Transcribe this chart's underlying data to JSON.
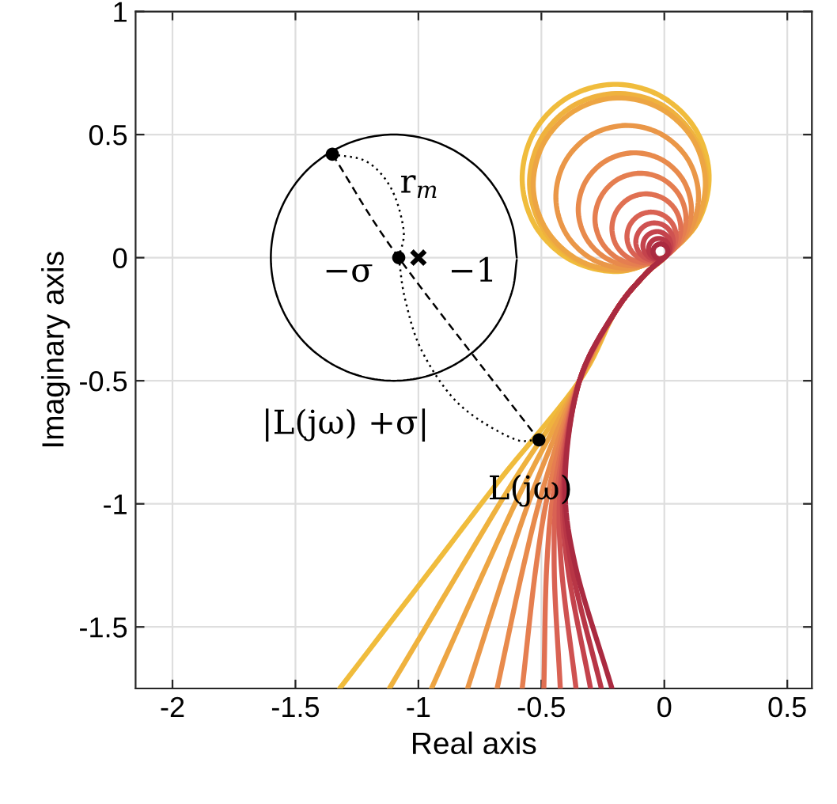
{
  "chart_data": {
    "type": "line",
    "xlabel": "Real axis",
    "ylabel": "Imaginary axis",
    "xlim": [
      -2.15,
      0.6
    ],
    "ylim": [
      -1.75,
      1
    ],
    "xticks": [
      -2,
      -1.5,
      -1,
      -0.5,
      0,
      0.5
    ],
    "yticks": [
      -1.5,
      -1,
      -0.5,
      0,
      0.5,
      1
    ],
    "grid": true,
    "series": [
      {
        "color": "#f0bc3c",
        "x": [
          -1.32,
          -0.936,
          -0.667,
          -0.345,
          -0.2,
          -0.08,
          0,
          0.136,
          0.182,
          0.126,
          -0.017,
          -0.208,
          -0.397,
          -0.532,
          -0.578,
          -0.523,
          -0.38,
          -0.188,
          0
        ],
        "values": [
          -1.75,
          -1.25,
          -0.9,
          -0.5,
          -0.22,
          -0.07,
          0,
          0.143,
          0.334,
          0.523,
          0.658,
          0.704,
          0.648,
          0.505,
          0.314,
          0.126,
          -0.01,
          -0.056,
          0
        ]
      },
      {
        "color": "#efb23e",
        "x": [
          -1.118,
          -0.82,
          -0.608,
          -0.345,
          -0.2,
          -0.08,
          0,
          0.129,
          0.172,
          0.119,
          -0.016,
          -0.197,
          -0.376,
          -0.504,
          -0.548,
          -0.495,
          -0.36,
          -0.179,
          0
        ],
        "values": [
          -1.75,
          -1.25,
          -0.9,
          -0.5,
          -0.22,
          -0.07,
          0,
          0.135,
          0.316,
          0.495,
          0.624,
          0.667,
          0.614,
          0.479,
          0.298,
          0.119,
          -0.009,
          -0.053,
          0
        ]
      },
      {
        "color": "#eda543",
        "x": [
          -0.947,
          -0.722,
          -0.558,
          -0.345,
          -0.2,
          -0.08,
          0,
          0.125,
          0.167,
          0.116,
          -0.016,
          -0.192,
          -0.365,
          -0.49,
          -0.533,
          -0.481,
          -0.35,
          -0.174,
          0
        ],
        "values": [
          -1.75,
          -1.25,
          -0.9,
          -0.5,
          -0.22,
          -0.07,
          0,
          0.132,
          0.308,
          0.481,
          0.606,
          0.649,
          0.597,
          0.466,
          0.289,
          0.116,
          -0.009,
          -0.051,
          0
        ]
      },
      {
        "color": "#ea9748",
        "x": [
          -0.8,
          -0.639,
          -0.516,
          -0.345,
          -0.2,
          -0.08,
          0,
          0.104,
          0.139,
          0.096,
          -0.013,
          -0.159,
          -0.303,
          -0.406,
          -0.441,
          -0.399,
          -0.29,
          -0.144,
          0
        ],
        "values": [
          -1.75,
          -1.25,
          -0.9,
          -0.5,
          -0.22,
          -0.07,
          0,
          0.109,
          0.255,
          0.399,
          0.502,
          0.537,
          0.495,
          0.386,
          0.24,
          0.096,
          -0.008,
          -0.043,
          0
        ]
      },
      {
        "color": "#e88a4c",
        "x": [
          -0.68,
          -0.572,
          -0.482,
          -0.345,
          -0.2,
          -0.08,
          0,
          0.082,
          0.11,
          0.076,
          -0.01,
          -0.126,
          -0.24,
          -0.322,
          -0.35,
          -0.316,
          -0.23,
          -0.114,
          0
        ],
        "values": [
          -1.75,
          -1.25,
          -0.9,
          -0.5,
          -0.22,
          -0.07,
          0,
          0.086,
          0.202,
          0.316,
          0.398,
          0.426,
          0.392,
          0.306,
          0.19,
          0.076,
          -0.006,
          -0.034,
          0
        ]
      },
      {
        "color": "#e57e50",
        "x": [
          -0.578,
          -0.521,
          -0.46,
          -0.345,
          -0.2,
          -0.08,
          0,
          0.066,
          0.088,
          0.061,
          -0.008,
          -0.101,
          -0.193,
          -0.259,
          -0.282,
          -0.254,
          -0.185,
          -0.092,
          0
        ],
        "values": [
          -1.75,
          -1.25,
          -0.9,
          -0.5,
          -0.22,
          -0.07,
          0,
          0.07,
          0.163,
          0.254,
          0.32,
          0.343,
          0.316,
          0.246,
          0.153,
          0.061,
          -0.005,
          -0.027,
          0
        ]
      },
      {
        "color": "#e07052",
        "x": [
          -0.49,
          -0.478,
          -0.442,
          -0.345,
          -0.2,
          -0.08,
          0,
          0.05,
          0.067,
          0.046,
          -0.006,
          -0.077,
          -0.146,
          -0.196,
          -0.213,
          -0.193,
          -0.14,
          -0.069,
          0
        ],
        "values": [
          -1.75,
          -1.25,
          -0.9,
          -0.5,
          -0.22,
          -0.07,
          0,
          0.053,
          0.123,
          0.193,
          0.242,
          0.259,
          0.239,
          0.186,
          0.116,
          0.046,
          -0.004,
          -0.021,
          0
        ]
      },
      {
        "color": "#d96253",
        "x": [
          -0.423,
          -0.448,
          -0.43,
          -0.345,
          -0.2,
          -0.08,
          0,
          0.036,
          0.048,
          0.033,
          -0.005,
          -0.055,
          -0.104,
          -0.14,
          -0.152,
          -0.138,
          -0.1,
          -0.05,
          0
        ],
        "values": [
          -1.75,
          -1.25,
          -0.9,
          -0.5,
          -0.22,
          -0.07,
          0,
          0.038,
          0.088,
          0.138,
          0.173,
          0.185,
          0.171,
          0.133,
          0.083,
          0.033,
          -0.003,
          -0.015,
          0
        ]
      },
      {
        "color": "#cf5251",
        "x": [
          -0.359,
          -0.419,
          -0.42,
          -0.345,
          -0.2,
          -0.08,
          0,
          0.027,
          0.036,
          0.025,
          -0.003,
          -0.042,
          -0.079,
          -0.106,
          -0.116,
          -0.105,
          -0.076,
          -0.038,
          0
        ],
        "values": [
          -1.75,
          -1.25,
          -0.9,
          -0.5,
          -0.22,
          -0.07,
          0,
          0.029,
          0.067,
          0.105,
          0.132,
          0.141,
          0.13,
          0.101,
          0.063,
          0.025,
          -0.002,
          -0.011,
          0
        ]
      },
      {
        "color": "#c4434c",
        "x": [
          -0.3,
          -0.394,
          -0.411,
          -0.345,
          -0.2,
          -0.08,
          0,
          0.02,
          0.027,
          0.019,
          -0.003,
          -0.031,
          -0.06,
          -0.08,
          -0.087,
          -0.078,
          -0.057,
          -0.028,
          0
        ],
        "values": [
          -1.75,
          -1.25,
          -0.9,
          -0.5,
          -0.22,
          -0.07,
          0,
          0.021,
          0.05,
          0.078,
          0.099,
          0.106,
          0.097,
          0.076,
          0.047,
          0.019,
          -0.001,
          -0.008,
          0
        ]
      },
      {
        "color": "#b83646",
        "x": [
          -0.256,
          -0.378,
          -0.407,
          -0.345,
          -0.2,
          -0.08,
          0,
          0.015,
          0.02,
          0.014,
          -0.002,
          -0.023,
          -0.044,
          -0.059,
          -0.064,
          -0.058,
          -0.042,
          -0.021,
          0
        ],
        "values": [
          -1.75,
          -1.25,
          -0.9,
          -0.5,
          -0.22,
          -0.07,
          0,
          0.016,
          0.037,
          0.058,
          0.073,
          0.078,
          0.072,
          0.056,
          0.035,
          0.014,
          -0.001,
          -0.006,
          0
        ]
      },
      {
        "color": "#aa2a40",
        "x": [
          -0.213,
          -0.362,
          -0.403,
          -0.345,
          -0.2,
          -0.08,
          0,
          0.011,
          0.014,
          0.01,
          -0.001,
          -0.016,
          -0.031,
          -0.042,
          -0.046,
          -0.041,
          -0.03,
          -0.015,
          0
        ],
        "values": [
          -1.75,
          -1.25,
          -0.9,
          -0.5,
          -0.22,
          -0.07,
          0,
          0.011,
          0.026,
          0.041,
          0.052,
          0.056,
          0.051,
          0.04,
          0.025,
          0.01,
          -0.001,
          -0.004,
          0
        ]
      },
      {
        "color": "#000000",
        "x": [
          -0.6,
          -0.617,
          -0.667,
          -0.746,
          -0.85,
          -0.971,
          -1.1,
          -1.229,
          -1.35,
          -1.454,
          -1.533,
          -1.583,
          -1.6,
          -1.583,
          -1.533,
          -1.454,
          -1.35,
          -1.229,
          -1.1,
          -0.971,
          -0.85,
          -0.746,
          -0.667,
          -0.617,
          -0.6
        ],
        "values": [
          0,
          0.129,
          0.25,
          0.354,
          0.433,
          0.483,
          0.5,
          0.483,
          0.433,
          0.354,
          0.25,
          0.129,
          0,
          -0.129,
          -0.25,
          -0.354,
          -0.433,
          -0.483,
          -0.5,
          -0.483,
          -0.433,
          -0.354,
          -0.25,
          -0.129,
          -0.009
        ]
      },
      {
        "color": "#000000",
        "line_style": "dashed",
        "x": [
          -1.35,
          -1.08,
          -0.51
        ],
        "values": [
          0.42,
          0,
          -0.74
        ]
      },
      {
        "color": "#000000",
        "line_style": "dotted",
        "x": [
          -1.35,
          -1.21,
          -1.11,
          -1.06,
          -1.08
        ],
        "values": [
          0.42,
          0.39,
          0.28,
          0.11,
          0
        ]
      },
      {
        "color": "#000000",
        "line_style": "dotted",
        "x": [
          -1.08,
          -1.054,
          -0.985,
          -0.835,
          -0.62,
          -0.51
        ],
        "values": [
          0,
          -0.169,
          -0.381,
          -0.595,
          -0.733,
          -0.74
        ]
      },
      {
        "type": "scatter",
        "color": "#000000",
        "marker": "circle",
        "x": [
          -1.35,
          -1.08,
          -0.51
        ],
        "values": [
          0.42,
          0,
          -0.74
        ]
      },
      {
        "type": "scatter",
        "color": "#000000",
        "marker": "cross",
        "x": [
          -1
        ],
        "values": [
          0
        ]
      }
    ],
    "annotations": [
      "r$_{m}$",
      "−σ",
      "−1",
      "|L(jω) +σ|",
      "L(jω)"
    ]
  }
}
